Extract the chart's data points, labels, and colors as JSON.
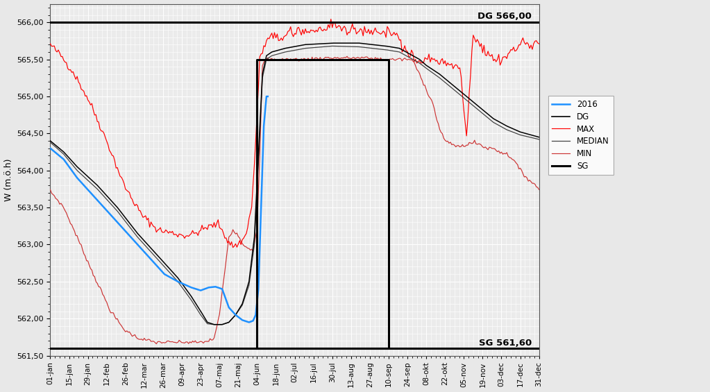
{
  "title": "",
  "ylabel": "W (m.ö.h)",
  "ylim": [
    561.5,
    566.25
  ],
  "yticks": [
    561.5,
    562.0,
    562.5,
    563.0,
    563.5,
    564.0,
    564.5,
    565.0,
    565.5,
    566.0
  ],
  "dg_value": 566.0,
  "sg_value": 561.6,
  "xtick_labels": [
    "01-jan",
    "15-jan",
    "29-jan",
    "12-feb",
    "26-feb",
    "12-mar",
    "26-mar",
    "09-apr",
    "23-apr",
    "07-maj",
    "21-maj",
    "04-jun",
    "18-jun",
    "02-jul",
    "16-jul",
    "30-jul",
    "13-aug",
    "27-aug",
    "10-sep",
    "24-sep",
    "08-okt",
    "22-okt",
    "05-nov",
    "19-nov",
    "03-dec",
    "17-dec",
    "31-dec"
  ],
  "bg_color": "#ebebeb",
  "grid_color": "#ffffff",
  "dg_line_color": "#000000",
  "median_color": "#444444",
  "max_color": "#ff0000",
  "min_color": "#cc3333",
  "year2016_color": "#1e90ff",
  "legend_labels": [
    "2016",
    "DG",
    "MAX",
    "MEDIAN",
    "MIN",
    "SG"
  ],
  "legend_colors": [
    "#1e90ff",
    "#000000",
    "#ff0000",
    "#444444",
    "#cc3333",
    "#000000"
  ]
}
